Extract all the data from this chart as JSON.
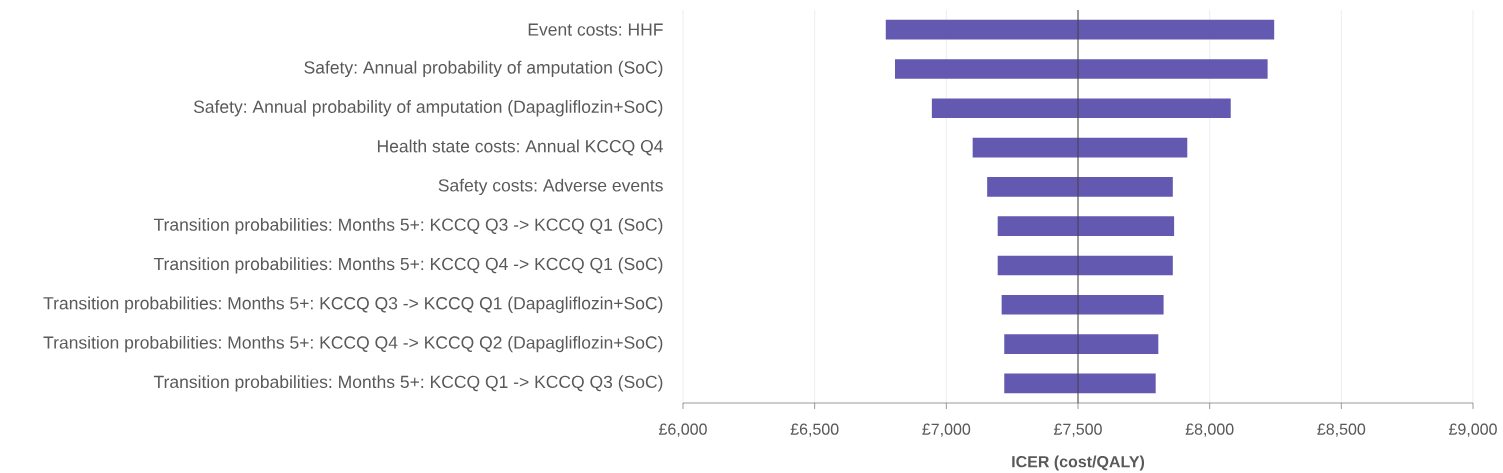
{
  "chart_data": {
    "type": "bar",
    "orientation": "horizontal",
    "categories": [
      "Event costs: HHF",
      "Safety: Annual probability of amputation (SoC)",
      "Safety: Annual probability of amputation (Dapagliflozin+SoC)",
      "Health state costs: Annual KCCQ Q4",
      "Safety costs: Adverse events",
      "Transition probabilities: Months 5+: KCCQ Q3 -> KCCQ Q1 (SoC)",
      "Transition probabilities: Months 5+: KCCQ Q4 -> KCCQ Q1 (SoC)",
      "Transition probabilities: Months 5+: KCCQ Q3 -> KCCQ Q1 (Dapagliflozin+SoC)",
      "Transition probabilities: Months 5+: KCCQ Q4 -> KCCQ Q2 (Dapagliflozin+SoC)",
      "Transition probabilities: Months 5+: KCCQ Q1 -> KCCQ Q3 (SoC)"
    ],
    "base": [
      6770,
      6805,
      6945,
      7100,
      7155,
      7195,
      7195,
      7210,
      7220,
      7220
    ],
    "values": [
      1475,
      1415,
      1135,
      815,
      705,
      670,
      665,
      615,
      585,
      575
    ],
    "color": "#6359b1",
    "xlim": [
      6000,
      9000
    ],
    "xticks": [
      {
        "value": 6000,
        "label": "£6,000"
      },
      {
        "value": 6500,
        "label": "£6,500"
      },
      {
        "value": 7000,
        "label": "£7,000"
      },
      {
        "value": 7500,
        "label": "£7,500"
      },
      {
        "value": 8000,
        "label": "£8,000"
      },
      {
        "value": 8500,
        "label": "£8,500"
      },
      {
        "value": 9000,
        "label": "£9,000"
      }
    ],
    "xlabel": "ICER (cost/QALY)",
    "grid": "x",
    "ref_lines": [
      {
        "axis": "x",
        "value": 7500,
        "color": "#404040"
      }
    ]
  }
}
